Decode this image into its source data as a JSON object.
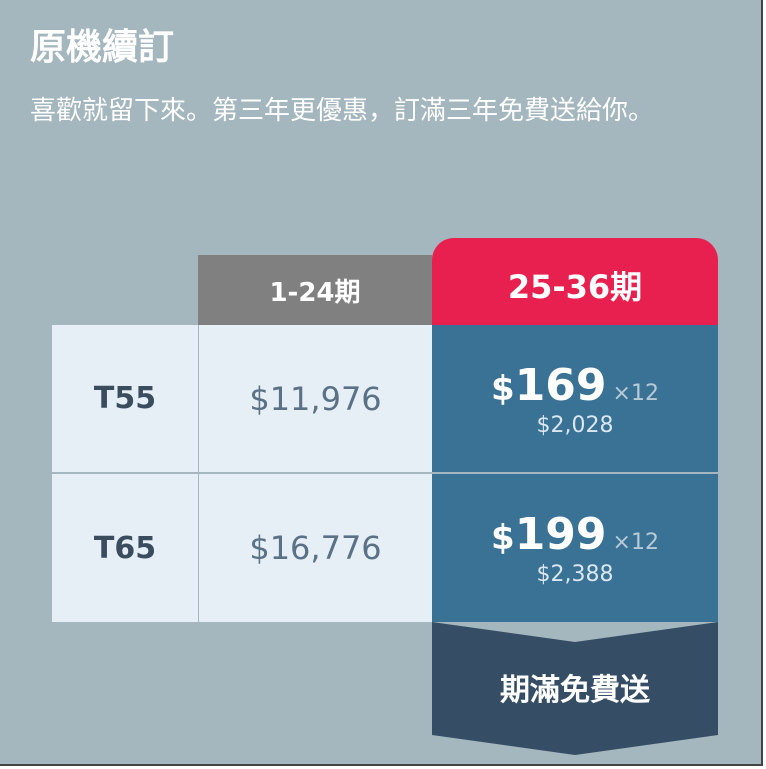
{
  "title": "原機續訂",
  "subtitle": "喜歡就留下來。第三年更優惠，訂滿三年免費送給你。",
  "headers": [
    "1-24期",
    "25-36期"
  ],
  "rows": [
    {
      "model": "T55",
      "price_1_24": "$11,976",
      "currency": "$",
      "monthly": "169",
      "times": "×12",
      "total": "$2,028"
    },
    {
      "model": "T65",
      "price_1_24": "$16,776",
      "currency": "$",
      "monthly": "199",
      "times": "×12",
      "total": "$2,388"
    }
  ],
  "footer": "期滿免費送",
  "colors": {
    "background": "#a4b6be",
    "header_gray": "#808080",
    "header_red": "#e8204f",
    "highlight_blue": "#3a7296",
    "footer_dark": "#364e65",
    "cell_light": "#e6eff6"
  }
}
